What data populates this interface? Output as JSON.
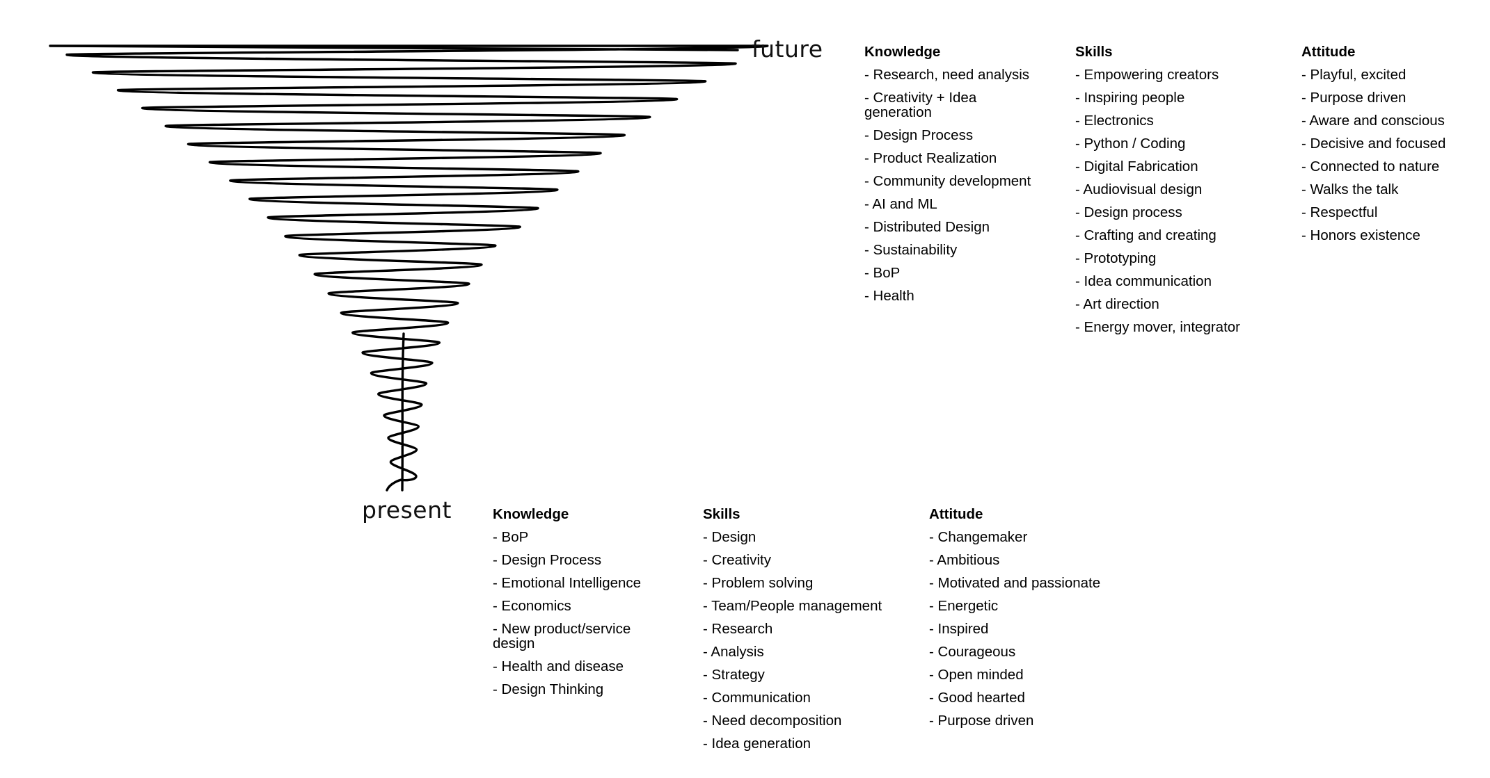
{
  "labels": {
    "future": "future",
    "present": "present"
  },
  "colors": {
    "ink": "#000000",
    "background": "#ffffff"
  },
  "future": {
    "knowledge": {
      "title": "Knowledge",
      "items": [
        "- Research, need analysis",
        "- Creativity + Idea generation",
        "- Design Process",
        "- Product Realization",
        "- Community development",
        "- AI and ML",
        "- Distributed Design",
        "- Sustainability",
        "- BoP",
        "- Health"
      ]
    },
    "skills": {
      "title": "Skills",
      "items": [
        "- Empowering creators",
        "- Inspiring people",
        "- Electronics",
        "- Python / Coding",
        "- Digital Fabrication",
        "- Audiovisual design",
        "- Design process",
        "- Crafting and creating",
        "- Prototyping",
        "- Idea communication",
        "- Art direction",
        "- Energy mover, integrator"
      ]
    },
    "attitude": {
      "title": "Attitude",
      "items": [
        "- Playful, excited",
        "- Purpose driven",
        "- Aware and conscious",
        "- Decisive and focused",
        "- Connected to nature",
        "- Walks the talk",
        "- Respectful",
        "- Honors existence"
      ]
    }
  },
  "present": {
    "knowledge": {
      "title": "Knowledge",
      "items": [
        "- BoP",
        "- Design Process",
        "- Emotional Intelligence",
        "- Economics",
        "- New product/service design",
        "- Health and disease",
        "- Design Thinking"
      ]
    },
    "skills": {
      "title": "Skills",
      "items": [
        "- Design",
        "- Creativity",
        "- Problem solving",
        "- Team/People management",
        "- Research",
        "- Analysis",
        "- Strategy",
        "- Communication",
        "- Need decomposition",
        "- Idea generation"
      ]
    },
    "attitude": {
      "title": "Attitude",
      "items": [
        "- Changemaker",
        "- Ambitious",
        "- Motivated and passionate",
        "- Energetic",
        "- Inspired",
        "- Courageous",
        "- Open minded",
        "- Good hearted",
        "- Purpose driven"
      ]
    }
  }
}
